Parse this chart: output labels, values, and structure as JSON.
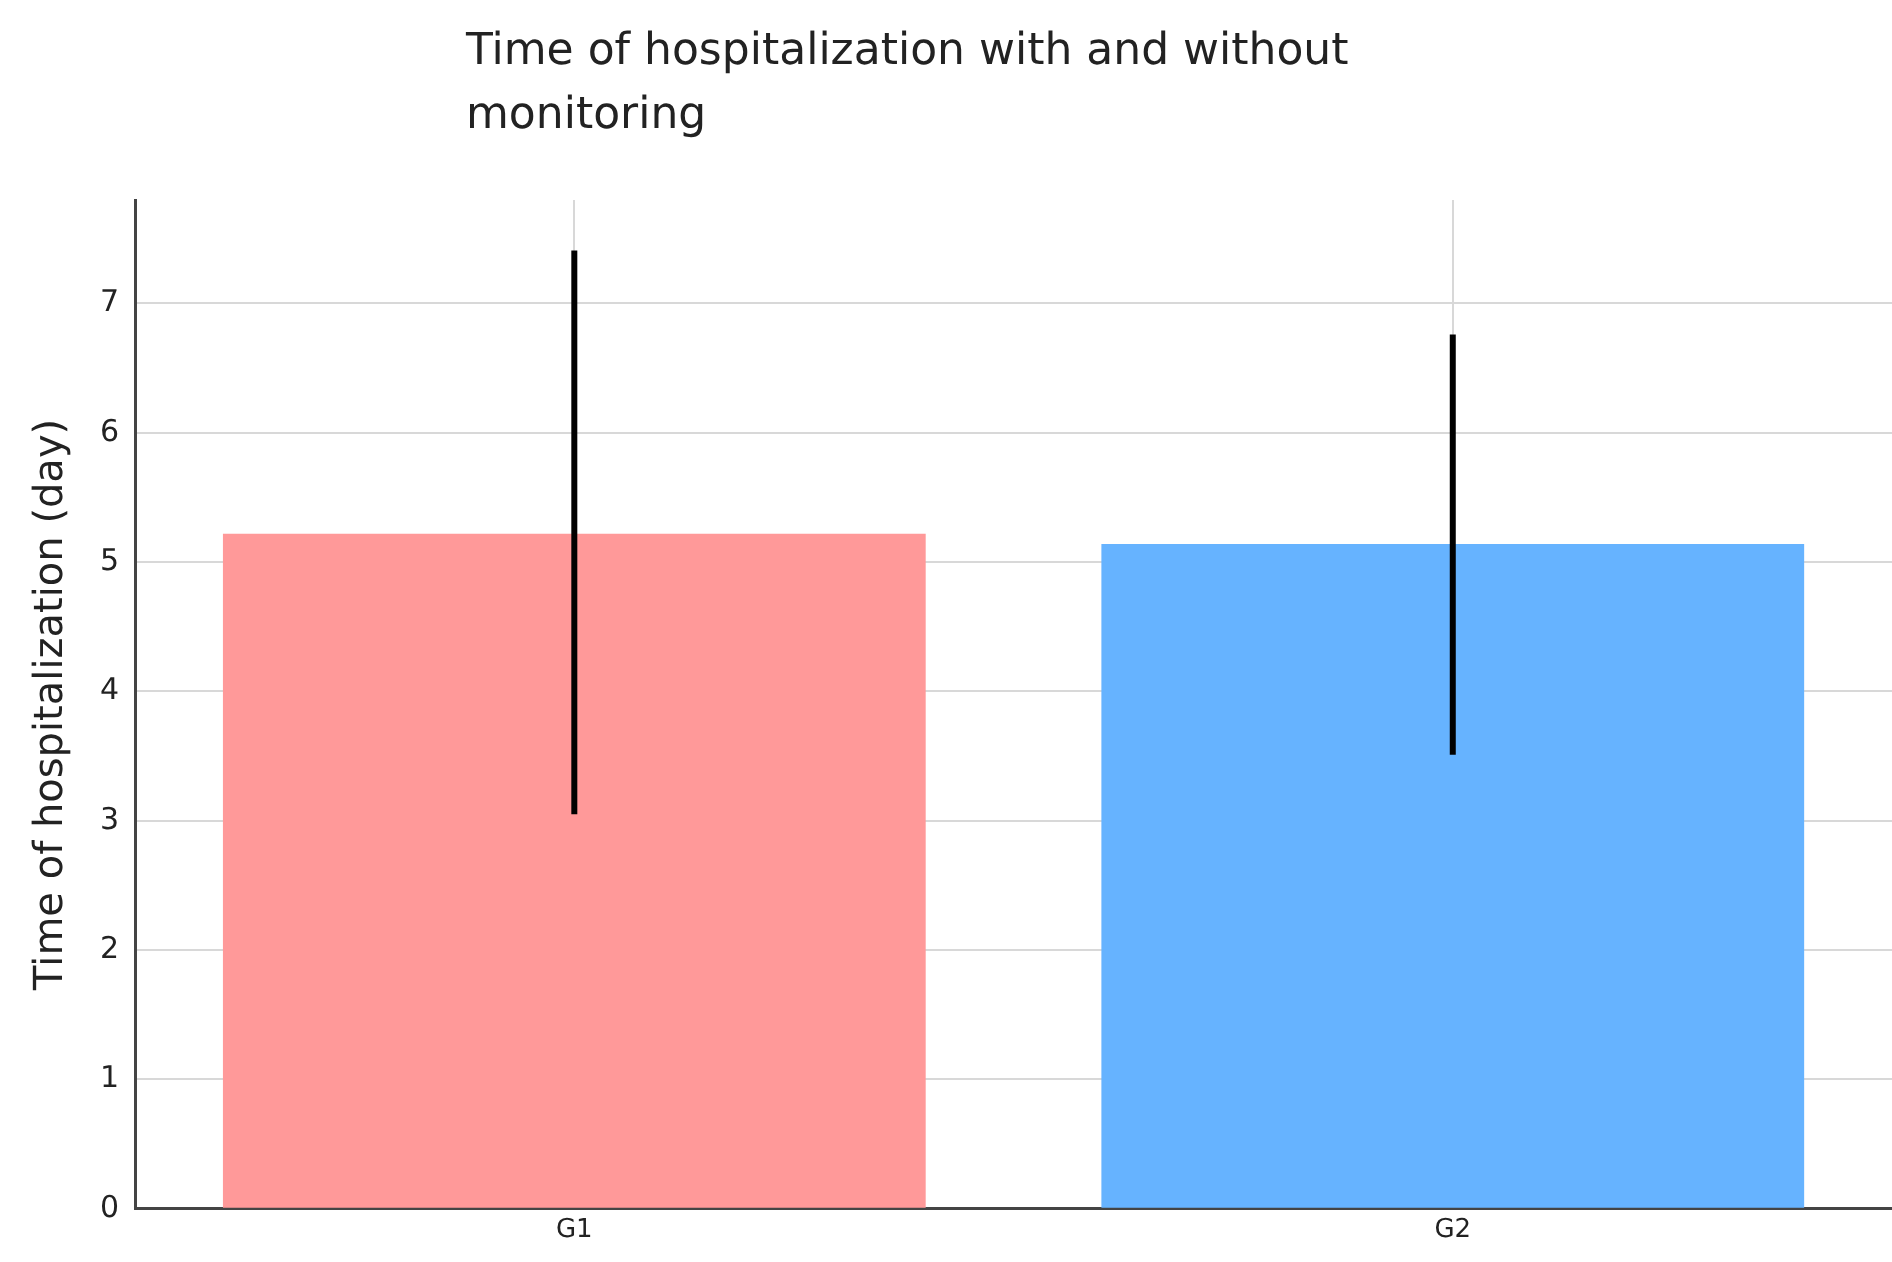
{
  "chart_data": {
    "type": "bar",
    "title": "Time of hospitalization with and without monitoring",
    "ylabel": "Time of hospitalization (day)",
    "categories": [
      "G1",
      "G2"
    ],
    "values": [
      5.22,
      5.14
    ],
    "colors": [
      "#ff9999",
      "#66b3ff"
    ],
    "errors": [
      [
        3.05,
        7.41
      ],
      [
        3.51,
        6.76
      ]
    ],
    "ylim": [
      0,
      7.8
    ],
    "yticks": [
      0,
      1,
      2,
      3,
      4,
      5,
      6,
      7
    ],
    "grid": true,
    "legend": false
  }
}
